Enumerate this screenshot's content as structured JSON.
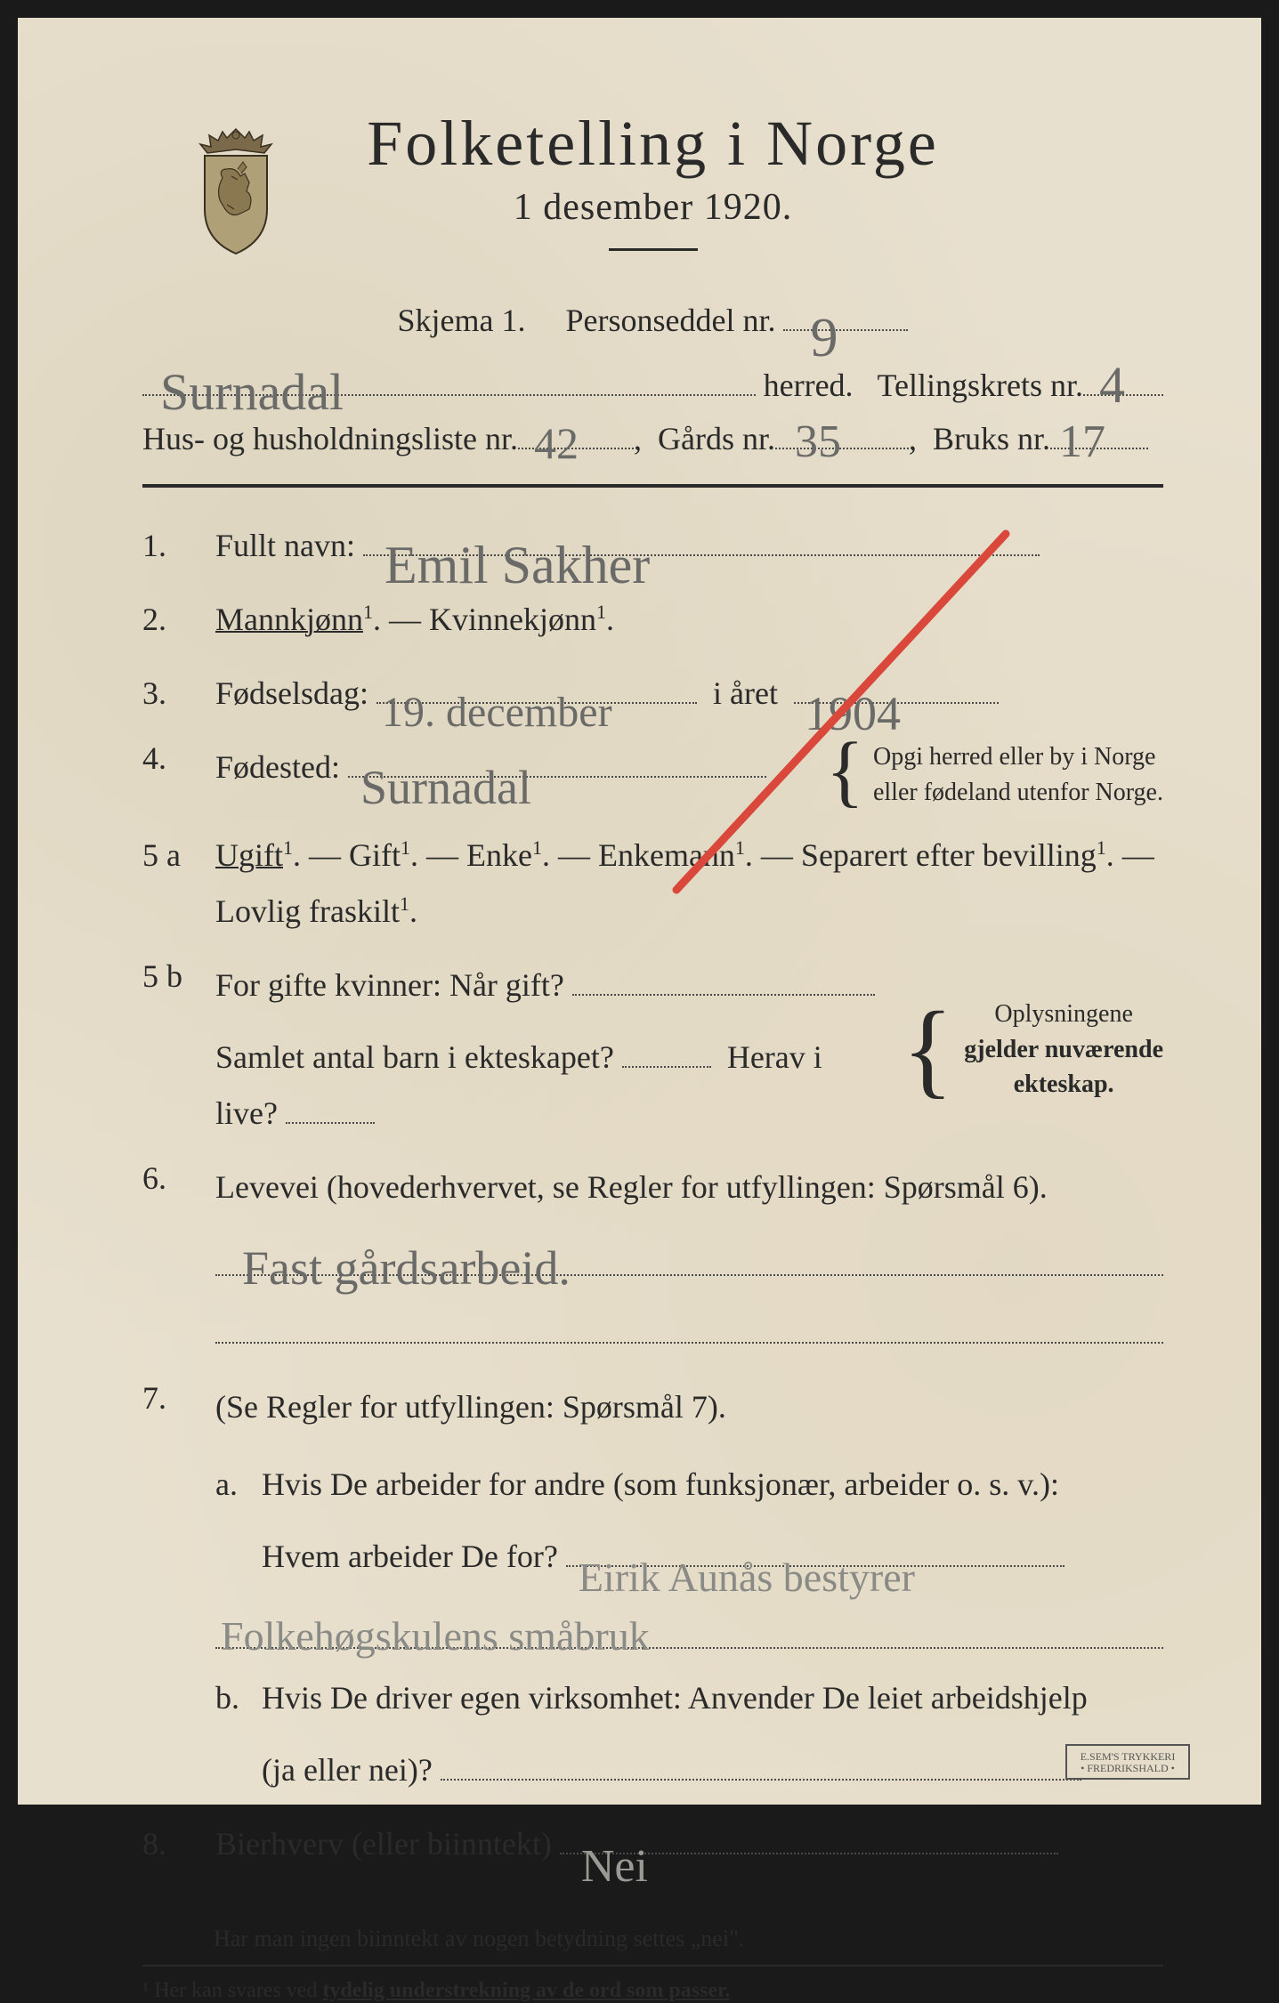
{
  "colors": {
    "paper": "#e8e0ce",
    "ink": "#2a2a2a",
    "pencil": "#6a6a68",
    "red_pencil": "#d9483b",
    "dotted": "#4a4a4a",
    "frame": "#1a1a1a"
  },
  "crest": {
    "crown_fill": "#7a6a4a",
    "shield_fill": "#b0a078",
    "lion_fill": "#8a7850"
  },
  "typography": {
    "title_size_pt": 54,
    "subtitle_size_pt": 32,
    "body_size_pt": 27,
    "sidenote_size_pt": 21,
    "footnote_size_pt": 20,
    "handwriting_family": "cursive"
  },
  "header": {
    "title": "Folketelling  i  Norge",
    "subtitle": "1 desember 1920."
  },
  "meta": {
    "skjema_label": "Skjema 1.",
    "personseddel_label": "Personseddel nr.",
    "personseddel_nr": "9",
    "herred_label": "herred.",
    "herred_value": "Surnadal",
    "tellingskrets_label": "Tellingskrets nr.",
    "tellingskrets_nr": "4",
    "hus_label": "Hus- og husholdningsliste nr.",
    "hus_nr": "42",
    "gards_label": "Gårds nr.",
    "gards_nr": "35",
    "bruks_label": "Bruks nr.",
    "bruks_nr": "17"
  },
  "q1": {
    "num": "1.",
    "label": "Fullt navn:",
    "value": "Emil Sakher"
  },
  "q2": {
    "num": "2.",
    "opt_a": "Mannkjønn",
    "opt_b": "Kvinnekjønn",
    "sup": "1",
    "sep": ". —",
    "end": "."
  },
  "q3": {
    "num": "3.",
    "label": "Fødselsdag:",
    "day_value": "19. december",
    "mid": "i året",
    "year_value": "1904"
  },
  "q4": {
    "num": "4.",
    "label": "Fødested:",
    "value": "Surnadal",
    "side_a": "Opgi herred eller by i Norge",
    "side_b": "eller fødeland utenfor Norge."
  },
  "q5a": {
    "num": "5 a",
    "opts": [
      "Ugift",
      "Gift",
      "Enke",
      "Enkemann",
      "Separert efter bevilling",
      "Lovlig fraskilt"
    ],
    "sup": "1",
    "sep": ". — ",
    "end": "."
  },
  "q5b": {
    "num": "5 b",
    "lead": "For gifte kvinner:  Når gift?",
    "line2a": "Samlet antal barn i ekteskapet?",
    "line2b": "Herav i live?",
    "side_a": "Oplysningene",
    "side_b": "gjelder nuværende",
    "side_c": "ekteskap."
  },
  "q6": {
    "num": "6.",
    "label": "Levevei (hovederhvervet, se Regler for utfyllingen:  Spørsmål 6).",
    "value": "Fast gårdsarbeid."
  },
  "q7": {
    "num": "7.",
    "lead": "(Se Regler for utfyllingen:  Spørsmål 7).",
    "a_label": "a.",
    "a_text1": "Hvis De arbeider for andre (som funksjonær, arbeider o. s. v.):",
    "a_text2": "Hvem arbeider De for?",
    "a_value1": "Eirik Aunås bestyrer",
    "a_value2": "Folkehøgskulens småbruk",
    "b_label": "b.",
    "b_text1": "Hvis De driver egen virksomhet:  Anvender De leiet arbeidshjelp",
    "b_text2": "(ja eller nei)?"
  },
  "q8": {
    "num": "8.",
    "label": "Bierhverv (eller biinntekt)",
    "value": "Nei"
  },
  "foot": {
    "line1": "Har man ingen biinntekt av nogen betydning settes „nei\".",
    "line2_pre": "¹  Her kan svares ved ",
    "line2_bold": "tydelig understrekning av de ord som passer.",
    "stamp_a": "E.SEM'S TRYKKERI",
    "stamp_b": "• FREDRIKSHALD •"
  }
}
